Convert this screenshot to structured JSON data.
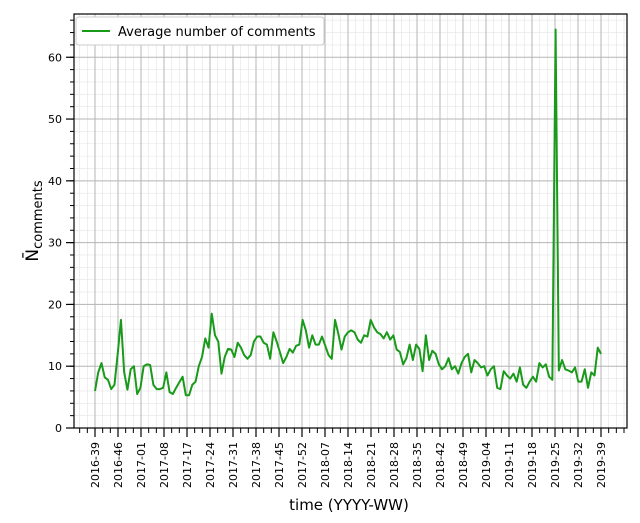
{
  "chart_data": {
    "type": "line",
    "x_label": "time (YYYY-WW)",
    "y_label_main": "N̄",
    "y_label_sub": "comments",
    "ylim": [
      0,
      67
    ],
    "y_ticks": [
      0,
      10,
      20,
      30,
      40,
      50,
      60
    ],
    "x_tick_labels": [
      "2016-39",
      "2016-46",
      "2017-01",
      "2017-08",
      "2017-17",
      "2017-24",
      "2017-31",
      "2017-38",
      "2017-45",
      "2017-52",
      "2018-07",
      "2018-14",
      "2018-21",
      "2018-28",
      "2018-35",
      "2018-42",
      "2018-49",
      "2019-04",
      "2019-11",
      "2019-18",
      "2019-25",
      "2019-32",
      "2019-39"
    ],
    "grid": true,
    "legend_position": "top-left",
    "colors": {
      "series": "#1a9a1a"
    },
    "series": [
      {
        "name": "Average number of comments",
        "values": [
          6,
          9,
          10.5,
          8.2,
          7.8,
          6.3,
          7,
          12,
          17.5,
          9,
          6.2,
          9.5,
          10,
          5.5,
          6.5,
          10,
          10.3,
          10.2,
          7,
          6.3,
          6.3,
          6.5,
          9,
          5.8,
          5.5,
          6.5,
          7.4,
          8.3,
          5.3,
          5.3,
          7,
          7.5,
          10,
          11.5,
          14.5,
          13,
          18.5,
          15,
          14,
          8.8,
          11.5,
          12.8,
          12.7,
          11.5,
          13.8,
          13,
          11.8,
          11.2,
          11.8,
          14,
          14.8,
          14.8,
          13.8,
          13.5,
          11.2,
          15.5,
          14,
          12.3,
          10.5,
          11.5,
          12.8,
          12.2,
          13.3,
          13.5,
          17.5,
          15.8,
          13,
          15,
          13.5,
          13.5,
          14.8,
          13.3,
          11.8,
          11.2,
          17.5,
          15.3,
          12.7,
          14.8,
          15.5,
          15.8,
          15.5,
          14.3,
          13.8,
          15,
          14.8,
          17.5,
          16.3,
          15.5,
          15.2,
          14.5,
          15.5,
          14.3,
          15,
          12.7,
          12.3,
          10.3,
          11.3,
          13.5,
          11,
          13.5,
          12.8,
          9.2,
          15,
          11,
          12.5,
          12,
          10.3,
          9.5,
          10,
          11.3,
          9.5,
          10,
          8.8,
          10.5,
          11.5,
          12,
          9,
          11,
          10.5,
          9.8,
          10,
          8.5,
          9.5,
          10,
          6.5,
          6.3,
          9.2,
          8.5,
          8,
          8.8,
          7.5,
          9.8,
          7,
          6.5,
          7.5,
          8.3,
          7.5,
          10.5,
          9.8,
          10.3,
          8.3,
          7.8,
          64.5,
          9.3,
          11,
          9.5,
          9.3,
          9,
          9.8,
          7.5,
          7.5,
          9.5,
          6.5,
          9,
          8.5,
          13,
          12
        ]
      }
    ]
  }
}
